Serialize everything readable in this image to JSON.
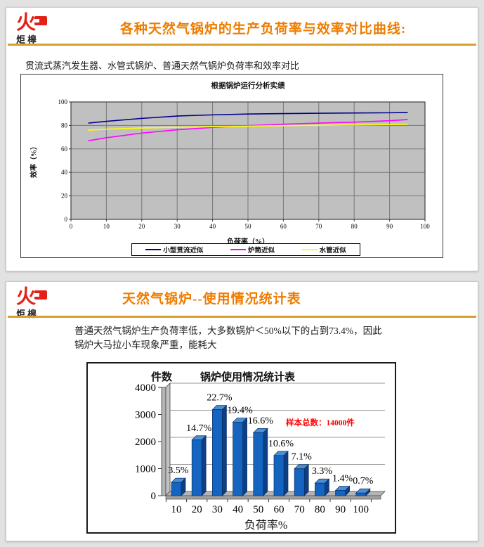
{
  "page": {
    "background": "#e2e2e2",
    "accent_orange": "#ee7c00",
    "rule_gold": "#d99e2b"
  },
  "logo": {
    "glyph": "火",
    "name": "炬槔",
    "color": "#e32017"
  },
  "slide1": {
    "title": "各种天然气锅炉的生产负荷率与效率对比曲线:",
    "subtitle": "贯流式蒸汽发生器、水管式锅炉、普通天然气锅炉负荷率和效率对比"
  },
  "slide2": {
    "title": "天然气锅炉--使用情况统计表",
    "body": "普通天然气锅炉生产负荷率低，大多数锅炉＜50%以下的占到73.4%，因此锅炉大马拉小车现象严重，能耗大"
  },
  "chart_data": [
    {
      "type": "line",
      "title": "根据锅炉运行分析实绩",
      "xlabel": "负荷率（%）",
      "ylabel": "效率（%）",
      "xlim": [
        0,
        100
      ],
      "ylim": [
        0,
        100
      ],
      "x_ticks": [
        0,
        10,
        20,
        30,
        40,
        50,
        60,
        70,
        80,
        90,
        100
      ],
      "y_ticks": [
        0,
        20,
        40,
        60,
        80,
        100
      ],
      "grid": true,
      "plot_bg": "#c0c0c0",
      "grid_color": "#787878",
      "legend_position": "bottom",
      "x": [
        5,
        10,
        20,
        30,
        40,
        50,
        60,
        70,
        80,
        90,
        95
      ],
      "series": [
        {
          "name": "小型贯流近似",
          "color": "#00008b",
          "values": [
            82,
            83.5,
            86,
            88,
            89,
            89.7,
            90.1,
            90.4,
            90.6,
            90.8,
            91
          ]
        },
        {
          "name": "炉筒近似",
          "color": "#ff00ff",
          "values": [
            67,
            69.5,
            73.5,
            76.3,
            78.3,
            79.8,
            81,
            82,
            82.8,
            84,
            85
          ]
        },
        {
          "name": "水管近似",
          "color": "#ffff00",
          "values": [
            76,
            76.8,
            77.8,
            78.4,
            78.9,
            79.4,
            79.8,
            80.1,
            80.4,
            80.7,
            81
          ]
        }
      ]
    },
    {
      "type": "bar",
      "title": "锅炉使用情况统计表",
      "ylabel": "件数",
      "xlabel": "负荷率%",
      "ylim": [
        0,
        4000
      ],
      "y_ticks": [
        0,
        1000,
        2000,
        3000,
        4000
      ],
      "categories": [
        "10",
        "20",
        "30",
        "40",
        "50",
        "60",
        "70",
        "80",
        "90",
        "100"
      ],
      "values": [
        490,
        2058,
        3178,
        2716,
        2324,
        1484,
        994,
        462,
        196,
        98
      ],
      "percent_labels": [
        "3.5%",
        "14.7%",
        "22.7%",
        "19.4%",
        "16.6%",
        "10.6%",
        "7.1%",
        "3.3%",
        "1.4%",
        "0.7%"
      ],
      "annotation": "样本总数：14000件",
      "annotation_color": "#ff0000",
      "bar_color": "#1565c0",
      "bar_top_color": "#4a8fd4",
      "bar_side_color": "#0d3f86"
    }
  ]
}
